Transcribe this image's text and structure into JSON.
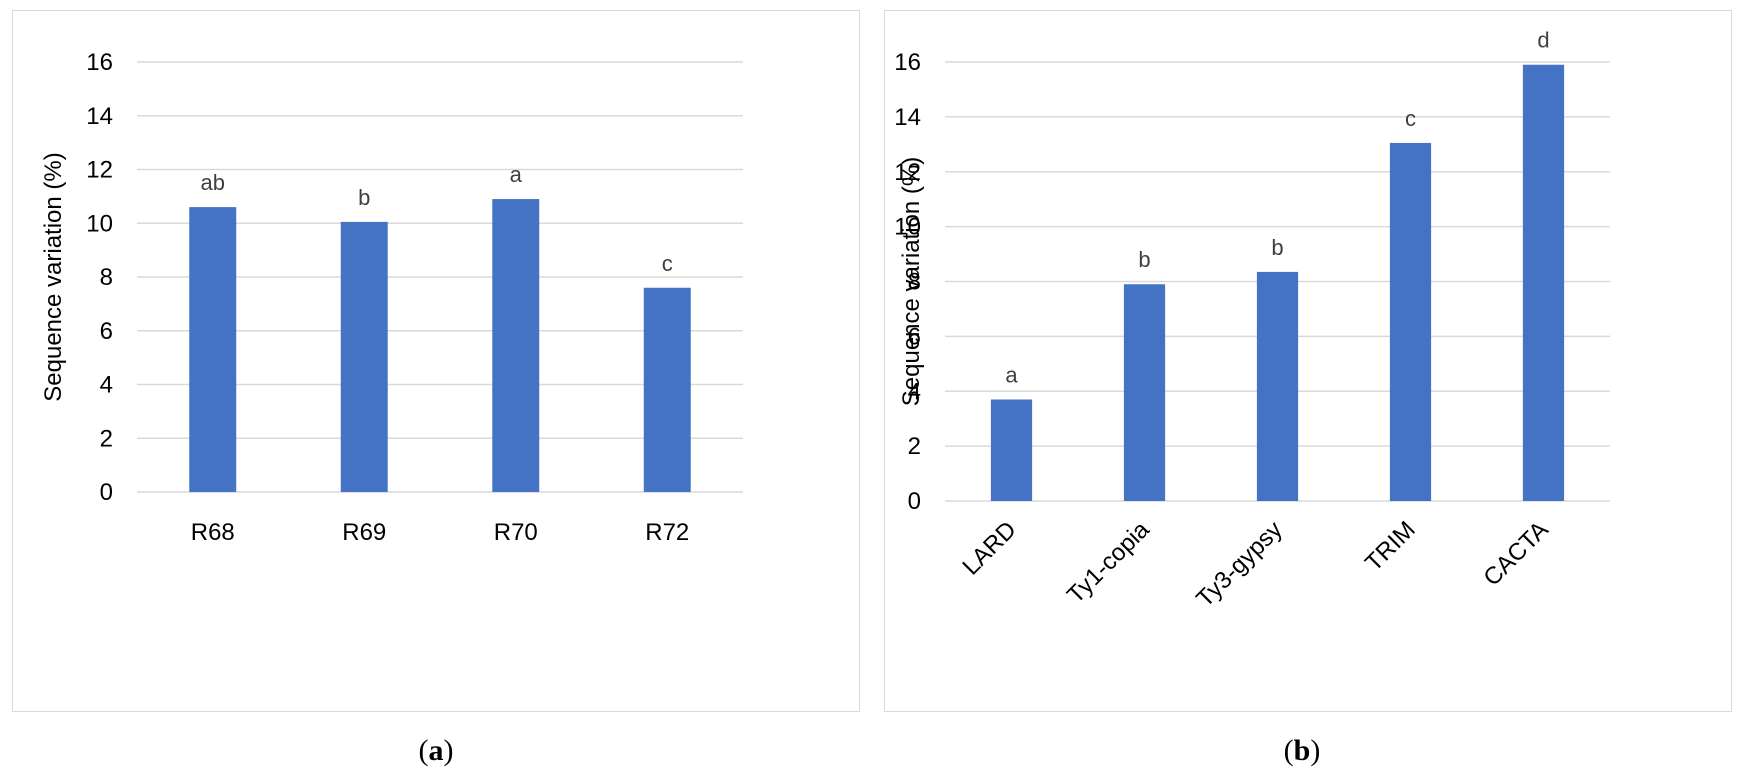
{
  "charts": {
    "a": {
      "caption_open": "(",
      "caption_letter": "a",
      "caption_close": ")"
    },
    "b": {
      "caption_open": "(",
      "caption_letter": "b",
      "caption_close": ")"
    }
  },
  "chart_data": [
    {
      "type": "bar",
      "title": "",
      "xlabel": "",
      "ylabel": "Sequence variation (%)",
      "ylim": [
        0,
        16
      ],
      "yticks": [
        0,
        2,
        4,
        6,
        8,
        10,
        12,
        14,
        16
      ],
      "grid": true,
      "categories": [
        "R68",
        "R69",
        "R70",
        "R72"
      ],
      "values": [
        10.6,
        10.05,
        10.9,
        7.6
      ],
      "annotations": [
        "ab",
        "b",
        "a",
        "c"
      ],
      "color": "#4472C4"
    },
    {
      "type": "bar",
      "title": "",
      "xlabel": "",
      "ylabel": "Sequence variation (%)",
      "ylim": [
        0,
        16
      ],
      "yticks": [
        0,
        2,
        4,
        6,
        8,
        10,
        12,
        14,
        16
      ],
      "grid": true,
      "categories": [
        "LARD",
        "Ty1-copia",
        "Ty3-gypsy",
        "TRIM",
        "CACTA"
      ],
      "values": [
        3.7,
        7.9,
        8.35,
        13.05,
        15.9
      ],
      "annotations": [
        "a",
        "b",
        "b",
        "c",
        "d"
      ],
      "color": "#4472C4"
    }
  ]
}
